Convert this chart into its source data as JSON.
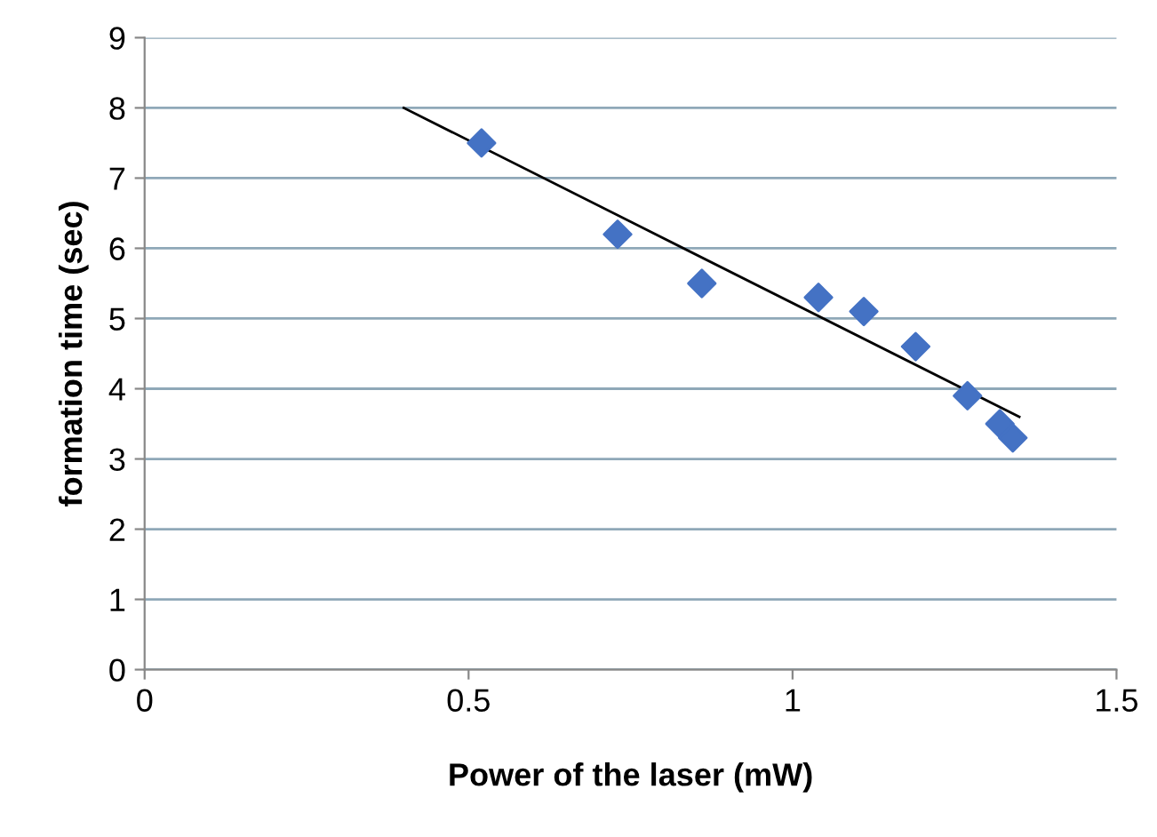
{
  "chart_data": {
    "type": "scatter",
    "xlabel": "Power of the laser (mW)",
    "ylabel": "formation time (sec)",
    "xlim": [
      0,
      1.5
    ],
    "xticks": [
      0,
      0.5,
      1,
      1.5
    ],
    "ylim": [
      0,
      9
    ],
    "yticks": [
      0,
      1,
      2,
      3,
      4,
      5,
      6,
      7,
      8,
      9
    ],
    "grid": "y",
    "marker": "diamond",
    "series": [
      {
        "color": "#4472c4",
        "x": [
          0.52,
          0.73,
          0.86,
          1.04,
          1.11,
          1.19,
          1.27,
          1.32,
          1.34
        ],
        "values": [
          7.5,
          6.2,
          5.5,
          5.3,
          5.1,
          4.6,
          3.9,
          3.5,
          3.3
        ]
      },
      {
        "type": "line",
        "color": "#000000",
        "x": [
          0.4,
          1.35
        ],
        "values": [
          8.0,
          3.6
        ],
        "marker": "none"
      }
    ]
  }
}
